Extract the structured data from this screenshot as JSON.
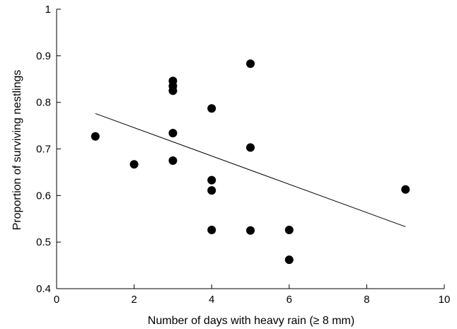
{
  "chart_data": {
    "type": "scatter",
    "title": "",
    "xlabel": "Number of days with heavy rain (≥ 8 mm)",
    "ylabel": "Proportion of surviving nestlings",
    "xlim": [
      0,
      10
    ],
    "ylim": [
      0.4,
      1
    ],
    "xticks": [
      0,
      2,
      4,
      6,
      8,
      10
    ],
    "yticks": [
      0.4,
      0.5,
      0.6,
      0.7,
      0.8,
      0.9,
      1
    ],
    "xtick_labels": [
      "0",
      "2",
      "4",
      "6",
      "8",
      "10"
    ],
    "ytick_labels": [
      "0.4",
      "0.5",
      "0.6",
      "0.7",
      "0.8",
      "0.9",
      "1"
    ],
    "grid": false,
    "legend": "none",
    "point_color": "#000000",
    "points": [
      {
        "x": 1,
        "y": 0.727
      },
      {
        "x": 2,
        "y": 0.667
      },
      {
        "x": 3,
        "y": 0.846
      },
      {
        "x": 3,
        "y": 0.835
      },
      {
        "x": 3,
        "y": 0.825
      },
      {
        "x": 3,
        "y": 0.734
      },
      {
        "x": 3,
        "y": 0.675
      },
      {
        "x": 4,
        "y": 0.787
      },
      {
        "x": 4,
        "y": 0.633
      },
      {
        "x": 4,
        "y": 0.611
      },
      {
        "x": 4,
        "y": 0.526
      },
      {
        "x": 5,
        "y": 0.883
      },
      {
        "x": 5,
        "y": 0.703
      },
      {
        "x": 5,
        "y": 0.525
      },
      {
        "x": 6,
        "y": 0.526
      },
      {
        "x": 6,
        "y": 0.462
      },
      {
        "x": 9,
        "y": 0.613
      }
    ],
    "trendline": {
      "type": "linear",
      "x": [
        1,
        9
      ],
      "y": [
        0.776,
        0.533
      ]
    }
  }
}
